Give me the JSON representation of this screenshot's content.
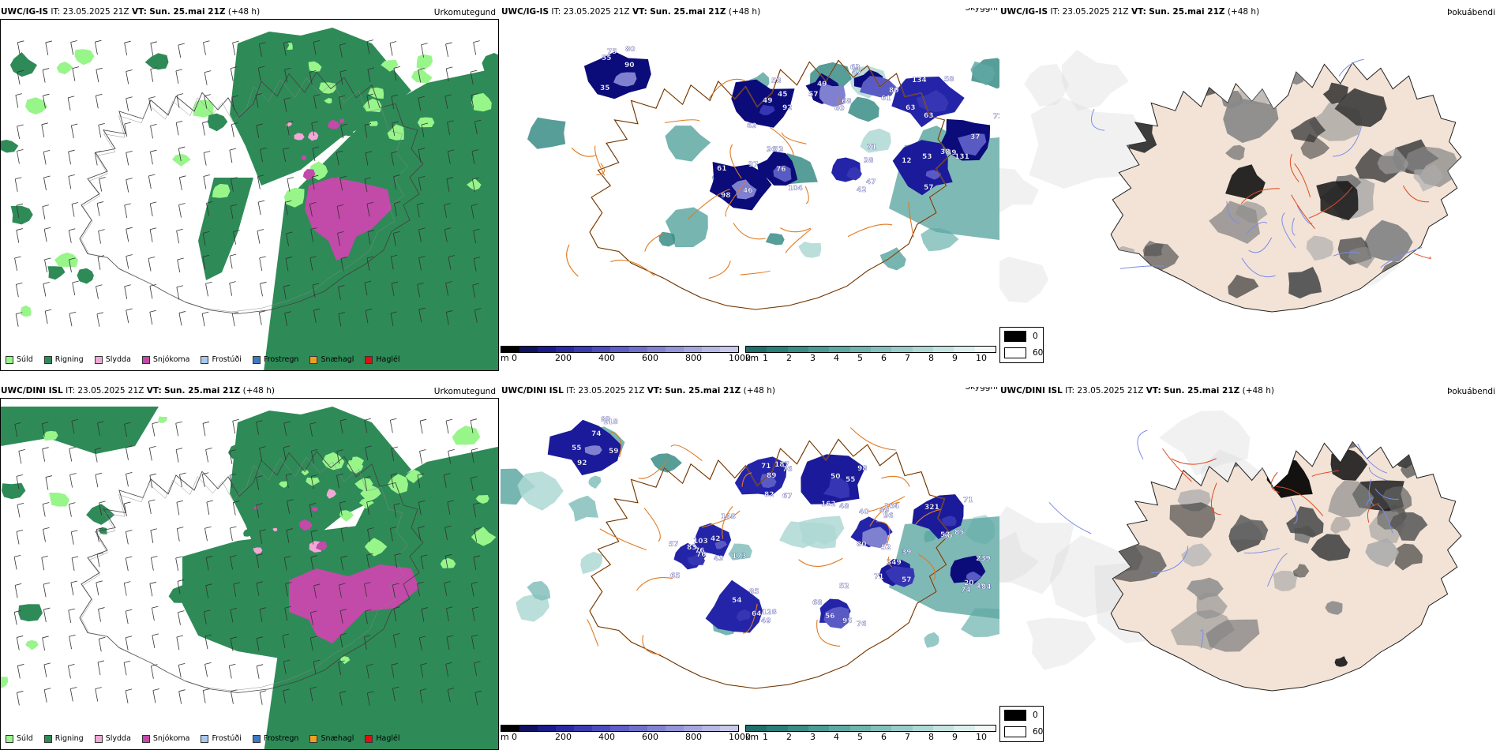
{
  "rows": [
    {
      "precip": {
        "model": "UWC/IG-IS",
        "it_label": "IT:",
        "it_value": "23.05.2025 21Z",
        "vt_label": "VT:",
        "vt_value": "Sun. 25.mai 21Z",
        "lead": "(+48 h)",
        "field": "Úrkomutegund"
      },
      "ceiling": {
        "model": "UWC/IG-IS",
        "it_label": "IT:",
        "it_value": "23.05.2025 21Z",
        "vt_label": "VT:",
        "vt_value": "Sun. 25.mai 21Z",
        "lead": "(+48 h)",
        "field": "Skyggni",
        "labels": [
          "75",
          "45",
          "60",
          "63",
          "58",
          "49",
          "47",
          "76",
          "37",
          "38",
          "35",
          "58",
          "57",
          "47",
          "63",
          "37",
          "38",
          "36",
          "61",
          "53",
          "80",
          "63",
          "49",
          "61",
          "134",
          "72",
          "71",
          "73",
          "46",
          "57",
          "55",
          "49",
          "68",
          "80",
          "63",
          "131",
          "42",
          "104",
          "98",
          "12",
          "90",
          "92"
        ]
      },
      "fog": {
        "model": "UWC/IG-IS",
        "it_label": "IT:",
        "it_value": "23.05.2025 21Z",
        "vt_label": "VT:",
        "vt_value": "Sun. 25.mai 21Z",
        "lead": "(+48 h)",
        "field": "Þokuábendi"
      }
    },
    {
      "precip": {
        "model": "UWC/DINI ISL",
        "it_label": "IT:",
        "it_value": "23.05.2025 21Z",
        "vt_label": "VT:",
        "vt_value": "Sun. 25.mai 21Z",
        "lead": "(+48 h)",
        "field": "Úrkomutegund"
      },
      "ceiling": {
        "model": "UWC/DINI ISL",
        "it_label": "IT:",
        "it_value": "23.05.2025 21Z",
        "vt_label": "VT:",
        "vt_value": "Sun. 25.mai 21Z",
        "lead": "(+48 h)",
        "field": "Skyggni",
        "labels": [
          "92",
          "89",
          "48",
          "49",
          "39",
          "85",
          "74",
          "76",
          "65",
          "49",
          "52",
          "55",
          "82",
          "162",
          "40",
          "57",
          "50",
          "49",
          "42",
          "76",
          "85",
          "56",
          "59",
          "187",
          "55",
          "104",
          "71",
          "71",
          "20",
          "103",
          "57",
          "54",
          "68",
          "118",
          "67",
          "50",
          "80",
          "52",
          "57",
          "84",
          "173",
          "83",
          "64",
          "76",
          "83",
          "71",
          "98",
          "96",
          "349",
          "321",
          "239",
          "148",
          "43",
          "128",
          "95",
          "74",
          "76"
        ]
      },
      "fog": {
        "model": "UWC/DINI ISL",
        "it_label": "IT:",
        "it_value": "23.05.2025 21Z",
        "vt_label": "VT:",
        "vt_value": "Sun. 25.mai 21Z",
        "lead": "(+48 h)",
        "field": "Þokuábendi"
      }
    }
  ],
  "precip_legend": [
    {
      "label": "Súld",
      "color": "#98f58a"
    },
    {
      "label": "Rigning",
      "color": "#2e8b57"
    },
    {
      "label": "Slydda",
      "color": "#f2a8d6"
    },
    {
      "label": "Snjókoma",
      "color": "#c24aa8"
    },
    {
      "label": "Frostúði",
      "color": "#a8c8f0"
    },
    {
      "label": "Frostregn",
      "color": "#3a7ac8"
    },
    {
      "label": "Snæhagl",
      "color": "#f0a020"
    },
    {
      "label": "Haglél",
      "color": "#e01010"
    }
  ],
  "ceiling_bar_m": {
    "unit": "m",
    "ticks": [
      "0",
      "200",
      "400",
      "600",
      "800",
      "1000"
    ],
    "colors": [
      "#000000",
      "#101060",
      "#1a1a8a",
      "#2a2aa0",
      "#3b3bb0",
      "#4c4cbc",
      "#5e5ec6",
      "#7070cc",
      "#8282d2",
      "#9494d8",
      "#a6a6de",
      "#b8b8e4",
      "#c8c8ea"
    ]
  },
  "visibility_bar_km": {
    "unit": "km",
    "ticks": [
      "1",
      "2",
      "3",
      "4",
      "5",
      "6",
      "7",
      "8",
      "9",
      "10"
    ],
    "colors": [
      "#1f6f6a",
      "#2a7e78",
      "#3a8c86",
      "#4c9a94",
      "#5ea8a2",
      "#70b4ae",
      "#84c0bb",
      "#98ccc8",
      "#aed8d4",
      "#c4e4e1",
      "#dcefed",
      "#f2f8f7"
    ]
  },
  "fog_key": {
    "items": [
      {
        "label": "0",
        "color": "#000000"
      },
      {
        "label": "60",
        "color": "#ffffff"
      }
    ]
  }
}
